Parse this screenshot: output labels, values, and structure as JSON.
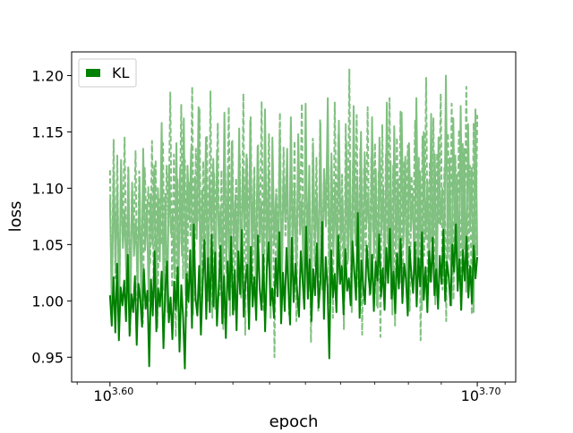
{
  "chart_data": {
    "type": "line",
    "xlabel": "epoch",
    "ylabel": "loss",
    "x_scale": "log10",
    "x_ticks": [
      {
        "value": 3981.07,
        "base": "10",
        "exponent": "3.60"
      },
      {
        "value": 5011.87,
        "base": "10",
        "exponent": "3.70"
      }
    ],
    "xlim": [
      3886.5,
      5134.0
    ],
    "y_ticks": [
      "0.95",
      "1.00",
      "1.05",
      "1.10",
      "1.15",
      "1.20"
    ],
    "ylim": [
      0.928,
      1.221
    ],
    "grid": false,
    "legend": {
      "position": "top-left",
      "entries": [
        "KL"
      ]
    },
    "series": [
      {
        "name": "KL",
        "color": "#008000",
        "style": "solid",
        "x_start": 3981.07,
        "x_end": 5011.87,
        "values": [
          1.005,
          0.978,
          1.021,
          0.972,
          1.033,
          0.965,
          1.012,
          0.996,
          1.018,
          0.982,
          1.041,
          0.969,
          1.006,
          0.99,
          1.022,
          0.961,
          1.015,
          1.001,
          0.977,
          1.028,
          0.993,
          1.009,
          0.942,
          1.019,
          0.987,
          1.044,
          0.973,
          1.011,
          0.995,
          1.026,
          0.958,
          1.008,
          1.035,
          0.981,
          1.003,
          0.966,
          1.017,
          0.992,
          1.03,
          0.955,
          1.014,
          0.986,
          0.94,
          1.024,
          0.999,
          1.045,
          0.976,
          1.068,
          1.002,
          0.987,
          1.031,
          0.97,
          1.016,
          1.054,
          0.984,
          1.038,
          0.99,
          1.059,
          0.995,
          1.043,
          0.978,
          1.012,
          1.049,
          0.98,
          1.022,
          0.967,
          1.035,
          1.001,
          1.057,
          0.988,
          1.027,
          0.974,
          1.044,
          1.006,
          1.063,
          0.986,
          1.018,
          1.032,
          0.975,
          1.048,
          0.995,
          1.021,
          0.983,
          1.058,
          1.01,
          0.992,
          1.041,
          0.973,
          1.029,
          1.052,
          0.996,
          1.011,
          0.985,
          1.038,
          1.004,
          1.061,
          0.98,
          1.025,
          0.991,
          1.047,
          1.013,
          0.979,
          1.056,
          0.999,
          1.033,
          1.008,
          0.986,
          1.044,
          1.019,
          0.993,
          1.066,
          1.002,
          1.037,
          0.982,
          1.028,
          1.005,
          1.051,
          0.994,
          1.017,
          1.07,
          0.984,
          1.039,
          1.012,
          0.949,
          1.045,
          1.003,
          1.024,
          0.99,
          1.058,
          1.015,
          1.031,
          0.988,
          1.046,
          1.009,
          1.02,
          0.996,
          1.053,
          1.027,
          1.001,
          1.078,
          0.985,
          1.036,
          1.014,
          0.997,
          1.049,
          1.022,
          1.006,
          1.041,
          0.991,
          1.035,
          1.018,
          1.059,
          1.004,
          1.029,
          0.992,
          1.047,
          1.016,
          1.064,
          1.002,
          1.026,
          0.989,
          1.042,
          1.011,
          1.055,
          0.998,
          1.033,
          1.019,
          0.987,
          1.048,
          1.024,
          1.007,
          1.052,
          0.995,
          1.038,
          1.013,
          1.061,
          1.001,
          1.03,
          0.99,
          1.044,
          1.017,
          1.056,
          1.005,
          1.028,
          0.993,
          1.04,
          1.015,
          1.063,
          1.0,
          1.035,
          1.021,
          0.996,
          1.05,
          1.026,
          1.068,
          1.009,
          1.037,
          0.992,
          1.045,
          1.018,
          1.057,
          1.003,
          1.031,
          0.998,
          1.049,
          1.02,
          1.039
        ]
      },
      {
        "name": "",
        "color": "#80c080",
        "style": "dashed",
        "x_start": 3981.07,
        "x_end": 5011.87,
        "values": [
          1.116,
          0.99,
          1.143,
          1.02,
          1.129,
          0.985,
          1.108,
          1.06,
          1.145,
          1.01,
          1.12,
          0.97,
          1.098,
          1.055,
          1.133,
          1.0,
          1.115,
          1.04,
          0.98,
          1.118,
          1.068,
          1.101,
          1.032,
          1.142,
          1.003,
          1.125,
          0.976,
          1.092,
          1.05,
          1.14,
          0.995,
          1.12,
          1.065,
          1.185,
          1.012,
          1.13,
          0.968,
          1.108,
          1.05,
          1.174,
          1.02,
          1.125,
          0.985,
          1.105,
          1.058,
          1.19,
          1.0,
          1.135,
          1.071,
          1.17,
          0.99,
          1.124,
          1.05,
          1.147,
          1.023,
          1.186,
          0.985,
          1.113,
          1.068,
          1.158,
          1.005,
          1.116,
          0.975,
          1.121,
          1.047,
          1.172,
          1.012,
          1.142,
          0.992,
          1.109,
          1.056,
          1.131,
          1.015,
          1.184,
          0.97,
          1.126,
          1.048,
          1.163,
          1.007,
          1.119,
          0.985,
          1.138,
          1.052,
          1.177,
          0.99,
          1.106,
          1.061,
          1.148,
          1.01,
          1.125,
          0.95,
          1.099,
          1.045,
          1.167,
          1.003,
          1.136,
          1.058,
          1.112,
          0.988,
          1.153,
          1.021,
          1.142,
          0.982,
          1.118,
          1.066,
          1.175,
          1.002,
          1.13,
          1.049,
          1.098,
          0.963,
          1.144,
          1.031,
          1.127,
          0.99,
          1.161,
          1.015,
          1.106,
          1.072,
          1.138,
          1.004,
          1.119,
          0.985,
          1.176,
          1.053,
          1.148,
          1.02,
          1.112,
          0.975,
          1.157,
          1.033,
          1.206,
          1.0,
          1.123,
          1.06,
          1.165,
          1.011,
          1.135,
          0.97,
          1.118,
          1.044,
          1.172,
          1.005,
          1.128,
          1.062,
          1.14,
          0.996,
          1.115,
          0.968,
          1.156,
          1.027,
          1.13,
          1.051,
          1.18,
          1.002,
          1.12,
          0.978,
          1.145,
          1.036,
          1.168,
          0.999,
          1.124,
          1.057,
          1.138,
          0.991,
          1.111,
          1.074,
          1.16,
          1.013,
          1.127,
          0.965,
          1.146,
          1.04,
          1.198,
          1.006,
          1.123,
          1.052,
          1.162,
          0.997,
          1.131,
          1.068,
          1.184,
          1.01,
          1.118,
          0.982,
          1.149,
          1.035,
          1.175,
          1.001,
          1.129,
          1.061,
          1.152,
          0.992,
          1.14,
          1.046,
          1.19,
          1.008,
          1.12,
          0.988,
          1.158,
          1.03,
          1.165
        ]
      },
      {
        "name": "",
        "color": "#80c080",
        "style": "solid",
        "x_start": 3981.07,
        "x_end": 5011.87,
        "values": [
          1.09,
          0.995,
          1.115,
          1.03,
          1.102,
          0.99,
          1.125,
          1.047,
          1.08,
          1.013,
          1.117,
          0.985,
          1.105,
          1.04,
          1.072,
          1.01,
          1.11,
          0.992,
          1.135,
          1.045,
          1.085,
          1.0,
          1.095,
          1.05,
          1.12,
          0.998,
          1.1,
          1.035,
          1.158,
          1.01,
          1.095,
          0.99,
          1.12,
          1.06,
          1.077,
          1.02,
          1.14,
          0.995,
          1.118,
          1.04,
          1.162,
          1.005,
          1.12,
          1.072,
          1.135,
          0.988,
          1.11,
          1.055,
          1.172,
          1.015,
          1.098,
          1.04,
          1.145,
          1.0,
          1.107,
          1.062,
          1.126,
          0.993,
          1.134,
          1.05,
          1.083,
          1.012,
          1.167,
          1.025,
          1.115,
          0.987,
          1.141,
          1.048,
          1.094,
          1.021,
          1.153,
          1.003,
          1.118,
          1.063,
          1.13,
          0.99,
          1.16,
          1.04,
          1.108,
          1.015,
          1.137,
          1.057,
          1.087,
          1.0,
          1.17,
          1.03,
          1.115,
          0.985,
          1.145,
          1.05,
          1.095,
          1.02,
          1.152,
          1.007,
          1.113,
          1.07,
          1.135,
          0.995,
          1.163,
          1.042,
          1.1,
          1.018,
          1.148,
          1.059,
          1.09,
          1.002,
          1.175,
          1.028,
          1.12,
          0.982,
          1.14,
          1.051,
          1.096,
          1.024,
          1.158,
          1.01,
          1.117,
          1.066,
          1.18,
          0.998,
          1.131,
          1.041,
          1.104,
          1.015,
          1.16,
          1.054,
          1.093,
          1.002,
          1.142,
          1.036,
          1.12,
          0.99,
          1.173,
          1.049,
          1.11,
          1.025,
          1.15,
          1.005,
          1.132,
          1.069,
          1.096,
          1.01,
          1.163,
          1.038,
          1.117,
          0.994,
          1.145,
          1.058,
          1.101,
          1.02,
          1.176,
          1.03,
          1.124,
          0.988,
          1.155,
          1.046,
          1.108,
          1.016,
          1.167,
          1.05,
          1.128,
          1.003,
          1.14,
          1.062,
          1.095,
          1.024,
          1.18,
          1.035,
          1.115,
          0.992,
          1.15,
          1.055,
          1.106,
          1.017,
          1.166,
          1.04,
          1.13,
          1.005,
          1.145,
          1.068,
          1.1,
          1.022,
          1.2,
          1.038,
          1.127,
          0.996,
          1.162,
          1.05,
          1.112,
          1.018,
          1.173,
          1.03,
          1.135,
          1.008,
          1.157,
          1.062,
          1.118,
          0.99,
          1.17,
          1.04
        ]
      }
    ]
  }
}
